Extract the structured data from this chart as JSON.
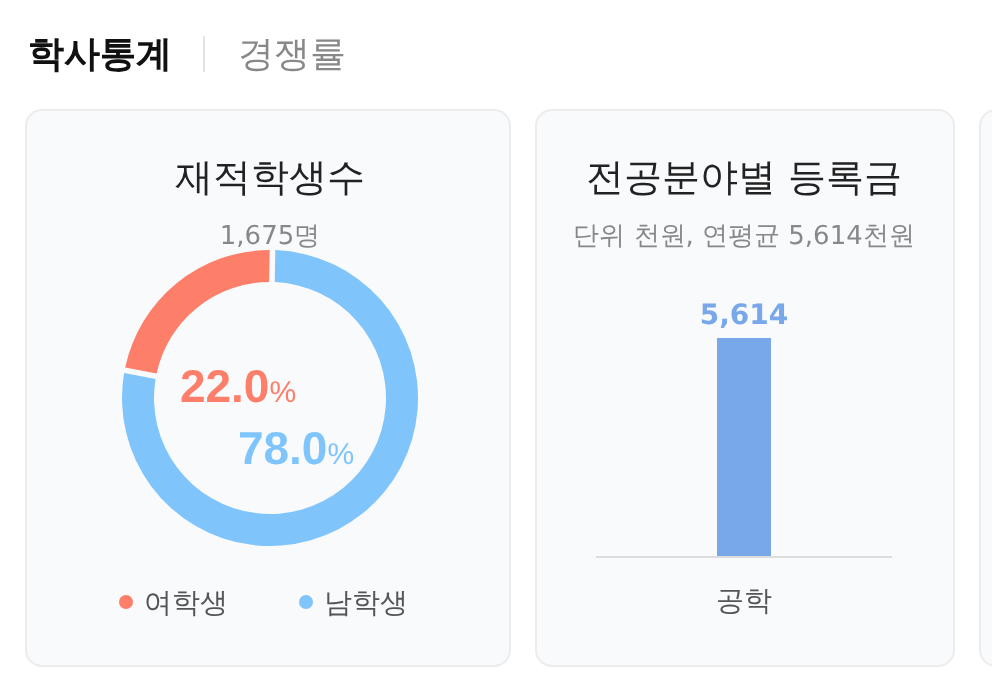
{
  "chart_data": [
    {
      "type": "donut",
      "title": "재적학생수",
      "subtitle": "1,675명",
      "categories": [
        "여학생",
        "남학생"
      ],
      "values": [
        22.0,
        78.0
      ],
      "colors": [
        "#fd7f6a",
        "#80c4fc"
      ],
      "value_labels": [
        "22.0%",
        "78.0%"
      ],
      "legend": "bottom",
      "annotations": [
        "학사통계",
        "경쟁률"
      ]
    },
    {
      "type": "bar",
      "title": "전공분야별 등록금",
      "subtitle": "단위 천원, 연평균 5,614천원",
      "categories": [
        "공학"
      ],
      "values": [
        5614
      ],
      "color": "#78a8ea",
      "value_labels": [
        "5,614"
      ]
    }
  ]
}
